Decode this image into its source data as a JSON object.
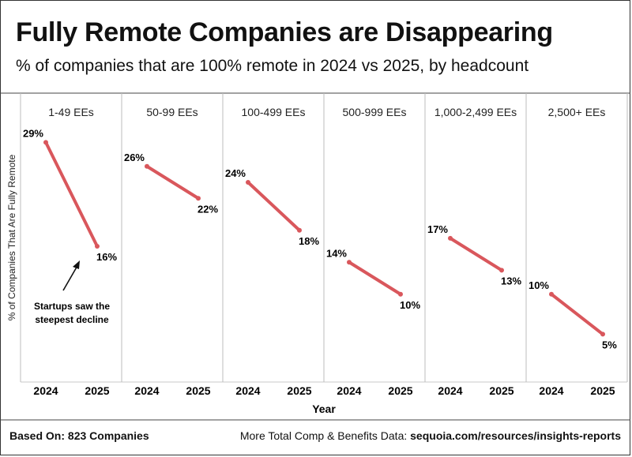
{
  "title": "Fully Remote Companies are Disappearing",
  "subtitle": "% of companies that are 100% remote in 2024 vs 2025, by headcount",
  "chart_data": {
    "type": "line",
    "layout": "small-multiples",
    "x": [
      "2024",
      "2025"
    ],
    "xlabel": "Year",
    "ylabel": "% of Companies That Are Fully Remote",
    "ylim": [
      0,
      32
    ],
    "grid": false,
    "line_color": "#d9575c",
    "panels": [
      {
        "name": "1-49 EEs",
        "values": [
          29,
          16
        ],
        "labels": [
          "29%",
          "16%"
        ]
      },
      {
        "name": "50-99 EEs",
        "values": [
          26,
          22
        ],
        "labels": [
          "26%",
          "22%"
        ]
      },
      {
        "name": "100-499 EEs",
        "values": [
          24,
          18
        ],
        "labels": [
          "24%",
          "18%"
        ]
      },
      {
        "name": "500-999 EEs",
        "values": [
          14,
          10
        ],
        "labels": [
          "14%",
          "10%"
        ]
      },
      {
        "name": "1,000-2,499 EEs",
        "values": [
          17,
          13
        ],
        "labels": [
          "17%",
          "13%"
        ]
      },
      {
        "name": "2,500+ EEs",
        "values": [
          10,
          5
        ],
        "labels": [
          "10%",
          "5%"
        ]
      }
    ],
    "annotation": {
      "lines": [
        "Startups saw the",
        "steepest decline"
      ],
      "panel": 0
    }
  },
  "footer": {
    "left": "Based On: 823 Companies",
    "right_prefix": "More Total Comp & Benefits Data: ",
    "right_link": "sequoia.com/resources/insights-reports"
  }
}
